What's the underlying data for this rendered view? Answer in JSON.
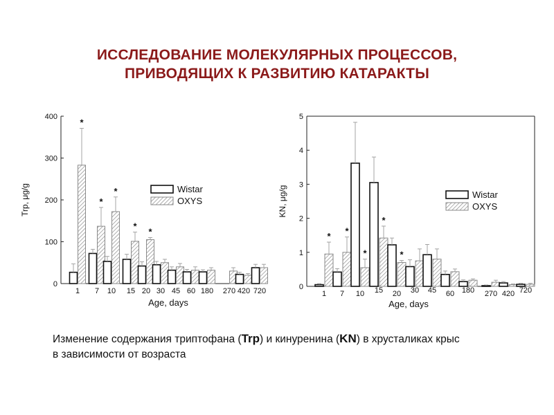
{
  "slide": {
    "title_line1": "ИССЛЕДОВАНИЕ МОЛЕКУЛЯРНЫХ ПРОЦЕССОВ,",
    "title_line2": "ПРИВОДЯЩИХ К РАЗВИТИЮ КАТАРАКТЫ",
    "title_color": "#8b1a1a"
  },
  "caption": {
    "part1": "Изменение содержания триптофана  (",
    "trp": "Trp",
    "part2": ") и кинуренина  (",
    "kn": "KN",
    "part3": ") в хрусталиках  крыс",
    "line2": "в зависимости  от возраста"
  },
  "chart_data": [
    {
      "type": "bar",
      "ylabel": "Trp, μg/g",
      "xlabel": "Age, days",
      "ylim": [
        0,
        400
      ],
      "yticks": [
        "0",
        "100",
        "200",
        "300",
        "400"
      ],
      "categories": [
        "1",
        "7",
        "10",
        "15",
        "20",
        "30",
        "45",
        "60",
        "180",
        "270",
        "420",
        "720"
      ],
      "legend_position": "right",
      "significance_marker": "*",
      "series": [
        {
          "name": "Wistar",
          "fill": "white",
          "values": [
            27,
            72,
            53,
            58,
            42,
            45,
            32,
            28,
            28,
            0,
            22,
            38
          ],
          "errors": [
            20,
            10,
            12,
            12,
            10,
            8,
            8,
            6,
            5,
            0,
            5,
            8
          ]
        },
        {
          "name": "OXYS",
          "fill": "hatched",
          "values": [
            283,
            137,
            172,
            101,
            105,
            50,
            40,
            32,
            32,
            30,
            20,
            38
          ],
          "errors": [
            88,
            45,
            35,
            22,
            5,
            8,
            8,
            8,
            6,
            8,
            4,
            8
          ],
          "significant": [
            true,
            true,
            true,
            true,
            true,
            false,
            false,
            false,
            false,
            false,
            false,
            false
          ]
        }
      ]
    },
    {
      "type": "bar",
      "ylabel": "KN, μg/g",
      "xlabel": "Age, days",
      "ylim": [
        0,
        5
      ],
      "yticks": [
        "0",
        "1",
        "2",
        "3",
        "4",
        "5"
      ],
      "categories": [
        "1",
        "7",
        "10",
        "15",
        "20",
        "30",
        "45",
        "60",
        "180",
        "270",
        "420",
        "720"
      ],
      "legend_position": "right",
      "significance_marker": "*",
      "series": [
        {
          "name": "Wistar",
          "fill": "white",
          "values": [
            0.05,
            0.42,
            3.62,
            3.05,
            1.22,
            0.58,
            0.93,
            0.35,
            0.14,
            0.02,
            0.1,
            0.06
          ],
          "errors": [
            0.03,
            0.1,
            1.2,
            0.75,
            0.2,
            0.2,
            0.3,
            0.1,
            0.05,
            0.02,
            0.04,
            0.03
          ]
        },
        {
          "name": "OXYS",
          "fill": "hatched",
          "values": [
            0.95,
            1.0,
            0.55,
            1.42,
            0.7,
            0.75,
            0.8,
            0.43,
            0.18,
            0.12,
            0.05,
            0.06
          ],
          "errors": [
            0.35,
            0.45,
            0.25,
            0.35,
            0.06,
            0.35,
            0.3,
            0.08,
            0.04,
            0.06,
            0.02,
            0.03
          ],
          "significant": [
            true,
            true,
            true,
            true,
            true,
            false,
            false,
            false,
            false,
            false,
            false,
            false
          ]
        }
      ]
    }
  ]
}
